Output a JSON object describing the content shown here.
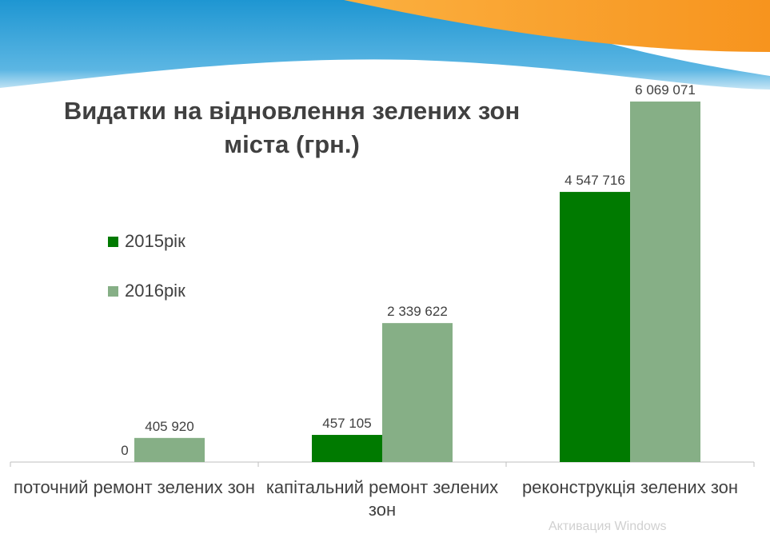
{
  "chart_data": {
    "type": "bar",
    "title": "Видатки на відновлення зелених зон міста (грн.)",
    "title_lines": [
      "Видатки на відновлення зелених зон",
      "міста (грн.)"
    ],
    "categories": [
      "поточний ремонт зелених зон",
      "капітальний ремонт зелених зон",
      "реконструкція зелених зон"
    ],
    "series": [
      {
        "name": "2015рік",
        "color": "#007A00",
        "values": [
          0,
          457105,
          4547716
        ],
        "labels": [
          "0",
          "457 105",
          "4 547 716"
        ]
      },
      {
        "name": "2016рік",
        "color": "#86AF86",
        "values": [
          405920,
          2339622,
          6069071
        ],
        "labels": [
          "405 920",
          "2 339 622",
          "6 069 071"
        ]
      }
    ],
    "ylim": [
      0,
      6500000
    ],
    "grid": false,
    "legend": "left"
  },
  "watermark": "Активация Windows",
  "colors": {
    "title": "#404040",
    "banner_blue": "#1E96D2",
    "banner_orange": "#F7941E"
  }
}
